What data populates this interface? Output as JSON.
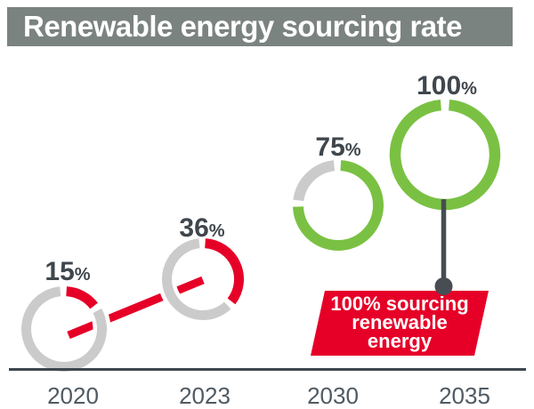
{
  "title": {
    "text": "Renewable energy sourcing rate"
  },
  "chart_data": {
    "type": "donut-timeline",
    "title": "Renewable energy sourcing rate",
    "unit": "%",
    "categories": [
      "2020",
      "2023",
      "2030",
      "2035"
    ],
    "values": [
      15,
      36,
      75,
      100
    ],
    "points": [
      {
        "year": "2020",
        "value": 15,
        "label": "15",
        "color_key": "achieved"
      },
      {
        "year": "2023",
        "value": 36,
        "label": "36",
        "color_key": "achieved"
      },
      {
        "year": "2030",
        "value": 75,
        "label": "75",
        "color_key": "target"
      },
      {
        "year": "2035",
        "value": 100,
        "label": "100",
        "color_key": "target"
      }
    ],
    "connector_between": [
      "2020",
      "2023"
    ],
    "annotation": {
      "lines": [
        "100% sourcing",
        "renewable",
        "energy"
      ],
      "attached_to": "2035"
    },
    "palette": {
      "achieved": "#e60028",
      "target": "#7ac143",
      "remainder": "#cccbcb",
      "axis": "#3e474d",
      "year_label": "#4f5a63",
      "value_label": "#3f464c",
      "connector_red": "#e60028",
      "connector_dark": "#474d52",
      "annotation_bg": "#e60028",
      "annotation_text": "#ffffff",
      "title_bg": "#7b8381",
      "title_text": "#ffffff"
    },
    "layout_hints": {
      "x_axis": "years left to right",
      "donut_fill": "clockwise from 12 o'clock",
      "legend": "none"
    }
  }
}
